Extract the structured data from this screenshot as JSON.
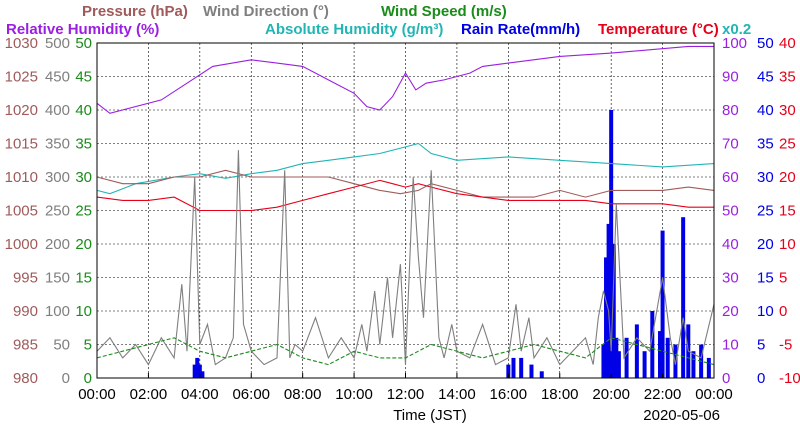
{
  "chart_data": {
    "type": "line",
    "date_label": "2020-05-06",
    "xlabel": "Time (JST)",
    "x_ticks": [
      "00:00",
      "02:00",
      "04:00",
      "06:00",
      "08:00",
      "10:00",
      "12:00",
      "14:00",
      "16:00",
      "18:00",
      "20:00",
      "22:00",
      "00:00"
    ],
    "grid": true,
    "legend_placement": "top",
    "scale_note": "x0.2",
    "legend": [
      {
        "key": "pressure",
        "label": "Pressure (hPa)",
        "color": "#a05a5a"
      },
      {
        "key": "wdir",
        "label": "Wind Direction (°)",
        "color": "#7f7f7f"
      },
      {
        "key": "wspd",
        "label": "Wind Speed (m/s)",
        "color": "#1a8c1a"
      },
      {
        "key": "rh",
        "label": "Relative Humidity (%)",
        "color": "#9b1fe0"
      },
      {
        "key": "ah",
        "label": "Absolute Humidity (g/m³)",
        "color": "#22b5b5"
      },
      {
        "key": "rain",
        "label": "Rain Rate(mm/h)",
        "color": "#0000e6"
      },
      {
        "key": "temp",
        "label": "Temperature (°C)",
        "color": "#e6001a"
      }
    ],
    "left_axes": [
      {
        "key": "pressure",
        "color": "#a05a5a",
        "ticks": [
          "1030",
          "1025",
          "1020",
          "1015",
          "1010",
          "1005",
          "1000",
          "995",
          "990",
          "985",
          "980"
        ]
      },
      {
        "key": "wdir",
        "color": "#7f7f7f",
        "ticks": [
          "500",
          "450",
          "400",
          "350",
          "300",
          "250",
          "200",
          "150",
          "100",
          "50",
          "0"
        ]
      },
      {
        "key": "wspd",
        "color": "#1a8c1a",
        "ticks": [
          "50",
          "45",
          "40",
          "35",
          "30",
          "25",
          "20",
          "15",
          "10",
          "5",
          "0"
        ]
      }
    ],
    "right_axes": [
      {
        "key": "rh",
        "color": "#9b1fe0",
        "ticks": [
          "100",
          "90",
          "80",
          "70",
          "60",
          "50",
          "40",
          "30",
          "20",
          "10",
          "0"
        ]
      },
      {
        "key": "rain",
        "color": "#0000e6",
        "ticks": [
          "50",
          "45",
          "40",
          "35",
          "30",
          "25",
          "20",
          "15",
          "10",
          "5",
          "0"
        ]
      },
      {
        "key": "temp",
        "color": "#e6001a",
        "ticks": [
          "40",
          "35",
          "30",
          "25",
          "20",
          "15",
          "10",
          "5",
          "0",
          "-5",
          "-10"
        ]
      }
    ],
    "series": [
      {
        "name": "Relative Humidity (%)",
        "key": "rh",
        "color": "#9b1fe0",
        "ymin": 0,
        "ymax": 100,
        "x": [
          0,
          0.5,
          2.5,
          3.5,
          4.5,
          6,
          7,
          8,
          9,
          10,
          10.5,
          11,
          11.5,
          12,
          12.4,
          12.8,
          13.5,
          14.5,
          15,
          16,
          18,
          20,
          23,
          24
        ],
        "y": [
          82,
          79,
          83,
          88,
          93,
          95,
          94,
          93,
          89,
          85,
          81,
          80,
          84,
          91,
          86,
          88,
          89,
          91,
          93,
          94,
          96,
          97,
          99,
          99
        ]
      },
      {
        "name": "Absolute Humidity (g/m³)",
        "key": "ah",
        "color": "#22b5b5",
        "ymin": 0,
        "ymax": 50,
        "x": [
          0,
          0.5,
          1.5,
          3,
          4,
          5,
          6,
          7,
          8,
          9,
          10,
          11,
          12,
          12.5,
          13,
          14,
          16,
          18,
          20,
          22,
          24
        ],
        "y": [
          28,
          27.5,
          29,
          30,
          30.5,
          29.8,
          30.5,
          31,
          32,
          32.5,
          33,
          33.5,
          34.5,
          35,
          33.5,
          32.5,
          33,
          32.5,
          32,
          31.5,
          32
        ]
      },
      {
        "name": "Pressure (hPa)",
        "key": "pressure",
        "color": "#a05a5a",
        "ymin": 980,
        "ymax": 1030,
        "x": [
          0,
          1,
          2,
          3,
          4,
          5,
          6,
          7,
          8,
          9,
          10,
          11,
          11.8,
          12.5,
          13,
          14,
          15,
          16,
          17,
          18,
          19,
          20,
          21,
          22,
          23,
          24
        ],
        "y": [
          1010,
          1009,
          1009,
          1010,
          1010,
          1011,
          1010,
          1010,
          1010,
          1010,
          1009,
          1008,
          1007.5,
          1008,
          1009,
          1008,
          1007,
          1007,
          1007,
          1008,
          1007,
          1008,
          1008,
          1008,
          1008.5,
          1008
        ]
      },
      {
        "name": "Temperature (°C)",
        "key": "temp",
        "color": "#e6001a",
        "ymin": -10,
        "ymax": 40,
        "x": [
          0,
          1,
          2,
          3,
          4,
          5,
          6,
          7,
          8,
          9,
          10,
          11,
          11.5,
          12,
          12.5,
          13,
          14,
          15,
          16,
          17,
          18,
          19,
          20,
          21,
          22,
          23,
          24
        ],
        "y": [
          17,
          16.5,
          16.5,
          17,
          15,
          15,
          15,
          15.5,
          16.5,
          17.5,
          18.5,
          19.5,
          19,
          18.5,
          19,
          18.5,
          17.5,
          17,
          16.5,
          16.5,
          16.5,
          16.5,
          16,
          16,
          16,
          15.5,
          15.5
        ]
      },
      {
        "name": "Wind Direction (°)",
        "key": "wdir",
        "color": "#7f7f7f",
        "ymin": 0,
        "ymax": 500,
        "x": [
          0,
          0.5,
          1,
          1.5,
          2,
          2.5,
          3,
          3.3,
          3.5,
          3.8,
          4,
          4.3,
          4.6,
          5,
          5.3,
          5.5,
          5.7,
          6,
          6.5,
          7,
          7.3,
          7.5,
          7.7,
          8,
          8.5,
          9,
          9.5,
          10,
          10.3,
          10.5,
          10.8,
          11,
          11.3,
          11.5,
          11.8,
          12,
          12.3,
          12.5,
          12.7,
          13,
          13.3,
          13.5,
          13.8,
          14,
          14.5,
          15,
          15.5,
          16,
          16.3,
          16.5,
          16.8,
          17,
          17.5,
          18,
          18.5,
          19,
          19.3,
          19.5,
          19.7,
          19.9,
          20,
          20.2,
          20.5,
          21,
          21.5,
          22,
          22.3,
          22.5,
          22.8,
          23,
          23.5,
          24
        ],
        "y": [
          40,
          60,
          30,
          50,
          20,
          60,
          30,
          140,
          40,
          300,
          50,
          80,
          20,
          30,
          60,
          340,
          80,
          40,
          20,
          30,
          310,
          30,
          50,
          40,
          90,
          30,
          60,
          30,
          80,
          40,
          130,
          50,
          150,
          60,
          170,
          20,
          300,
          180,
          90,
          310,
          60,
          30,
          80,
          40,
          30,
          80,
          20,
          30,
          110,
          40,
          90,
          30,
          60,
          20,
          40,
          60,
          20,
          90,
          130,
          100,
          40,
          260,
          30,
          60,
          40,
          150,
          60,
          20,
          90,
          40,
          30,
          110
        ]
      },
      {
        "name": "Wind Speed (m/s)",
        "key": "wspd",
        "color": "#1a8c1a",
        "ymin": 0,
        "ymax": 50,
        "x": [
          0,
          1,
          2,
          3,
          4,
          5,
          6,
          7,
          8,
          9,
          10,
          11,
          12,
          13,
          14,
          15,
          16,
          17,
          18,
          19,
          20,
          21,
          22,
          23,
          24
        ],
        "y": [
          3,
          4,
          5,
          6,
          4,
          3,
          4,
          5,
          3,
          2,
          4,
          3,
          3,
          5,
          4,
          3,
          4,
          5,
          4,
          3,
          6,
          5,
          4,
          3,
          2
        ]
      }
    ],
    "rain": {
      "name": "Rain Rate(mm/h)",
      "key": "rain",
      "color": "#0000e6",
      "ymin": 0,
      "ymax": 50,
      "x": [
        3.8,
        3.9,
        4.0,
        4.1,
        16.0,
        16.2,
        16.5,
        16.9,
        17.3,
        19.7,
        19.8,
        19.9,
        20.0,
        20.1,
        20.2,
        20.3,
        20.6,
        21.0,
        21.3,
        21.6,
        21.9,
        22.0,
        22.2,
        22.5,
        22.8,
        23.0,
        23.2,
        23.5,
        23.8
      ],
      "y": [
        2,
        3,
        2,
        1,
        2,
        3,
        3,
        2,
        1,
        5,
        18,
        23,
        40,
        20,
        6,
        4,
        6,
        8,
        4,
        10,
        7,
        22,
        6,
        5,
        24,
        8,
        4,
        5,
        3
      ]
    }
  }
}
